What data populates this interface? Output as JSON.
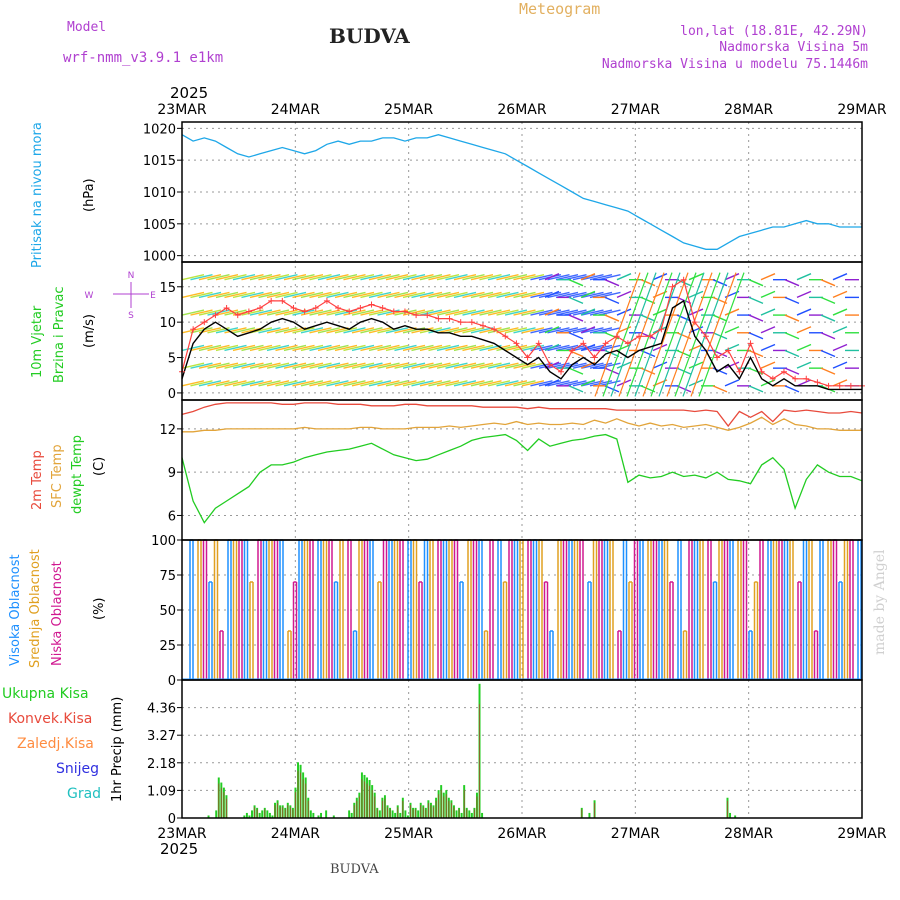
{
  "header": {
    "model_label": "Model",
    "model_name": "wrf-nmm_v3.9.1 e1km",
    "station": "BUDVA",
    "chart_kind": "Meteogram",
    "coords": "lon,lat (18.81E, 42.29N)",
    "elevation": "Nadmorska Visina 5m",
    "model_elevation": "Nadmorska Visina u modelu 75.1446m",
    "year_top": "2025",
    "year_bottom": "2025",
    "footer_station": "BUDVA",
    "credit": "made by Angel"
  },
  "colors": {
    "pressure": "#1ea7e8",
    "wind_speed": "#000000",
    "gust": "#ff4040",
    "temp2m": "#e84a3c",
    "sfc_temp": "#e2a43a",
    "dewpt": "#22cc22",
    "cloud_high": "#1e90ff",
    "cloud_mid": "#e0a020",
    "cloud_low": "#d01890",
    "precip_total": "#22cc22",
    "precip_conv": "#a0502a",
    "precip_froz": "#ff8c40",
    "snow": "#3030e0",
    "hail": "#20c0c0",
    "label_purple": "#b040d0"
  },
  "chart_data": {
    "x_tick_labels": [
      "23MAR",
      "24MAR",
      "25MAR",
      "26MAR",
      "27MAR",
      "28MAR",
      "29MAR"
    ],
    "grid": true,
    "panels": [
      {
        "id": "pressure",
        "type": "line",
        "ylabels": [
          "Pritisak na nivou mora",
          "(hPa)"
        ],
        "ylim": [
          999,
          1021
        ],
        "yticks": [
          "1000",
          "1005",
          "1010",
          "1015",
          "1020"
        ],
        "series": [
          {
            "key": "pressure",
            "values": [
              1019,
              1018,
              1018.5,
              1018,
              1017,
              1016,
              1015.5,
              1016,
              1016.5,
              1017,
              1016.5,
              1016,
              1016.5,
              1017.5,
              1018,
              1017.5,
              1018,
              1018,
              1018.5,
              1018.5,
              1018,
              1018.5,
              1018.5,
              1019,
              1018.5,
              1018,
              1017.5,
              1017,
              1016.5,
              1016,
              1015,
              1014,
              1013,
              1012,
              1011,
              1010,
              1009,
              1008.5,
              1008,
              1007.5,
              1007,
              1006,
              1005,
              1004,
              1003,
              1002,
              1001.5,
              1001,
              1001,
              1002,
              1003,
              1003.5,
              1004,
              1004.5,
              1004.5,
              1005,
              1005.5,
              1005,
              1005,
              1004.5,
              1004.5,
              1004.5
            ]
          }
        ]
      },
      {
        "id": "wind",
        "type": "line",
        "ylabels": [
          "10m Vjetar",
          "Brzina i Pravac",
          "(m/s)"
        ],
        "ylim": [
          -1,
          18.5
        ],
        "yticks": [
          "0",
          "5",
          "10",
          "15"
        ],
        "compass": [
          "N",
          "E",
          "S",
          "W"
        ],
        "series": [
          {
            "key": "wind_speed",
            "values": [
              2,
              7,
              9,
              10,
              9,
              8,
              8.5,
              9,
              10,
              10.5,
              10,
              9,
              9.5,
              10,
              9.5,
              9,
              10,
              10.5,
              10,
              9,
              9.5,
              9,
              9,
              8.5,
              8.5,
              8,
              8,
              7.5,
              7,
              6,
              5,
              4,
              5,
              3,
              2,
              4,
              5,
              4,
              5.5,
              6,
              5,
              6,
              6.5,
              7,
              12,
              13,
              8,
              6,
              3,
              4,
              2,
              5,
              2,
              1,
              2,
              1,
              1,
              1,
              0.5,
              0.5,
              0.5,
              0.5
            ]
          },
          {
            "key": "gust",
            "values": [
              3,
              9,
              10,
              11,
              12,
              11,
              11.5,
              12,
              13,
              13,
              12,
              11.5,
              12,
              13,
              12,
              11.5,
              12,
              12.5,
              12,
              11.5,
              11.5,
              11,
              11,
              10.5,
              10.5,
              10,
              10,
              9.5,
              9,
              8,
              7,
              5,
              7,
              4,
              3,
              6,
              7,
              5,
              7,
              8,
              7,
              8,
              8,
              9,
              15,
              16,
              10,
              8,
              5,
              6,
              3,
              7,
              3,
              2,
              3,
              2,
              2,
              1.5,
              1,
              1,
              1,
              1
            ]
          }
        ]
      },
      {
        "id": "temp",
        "type": "line",
        "ylabels": [
          "2m Temp",
          "SFC Temp",
          "dewpt Temp",
          "(C)"
        ],
        "ylim": [
          4.3,
          14
        ],
        "yticks": [
          "6",
          "9",
          "12"
        ],
        "series": [
          {
            "key": "temp2m",
            "values": [
              13,
              13.2,
              13.5,
              13.7,
              13.8,
              13.8,
              13.8,
              13.8,
              13.8,
              13.7,
              13.7,
              13.8,
              13.8,
              13.8,
              13.7,
              13.7,
              13.7,
              13.6,
              13.6,
              13.6,
              13.7,
              13.7,
              13.6,
              13.6,
              13.6,
              13.6,
              13.6,
              13.5,
              13.5,
              13.5,
              13.5,
              13.4,
              13.5,
              13.4,
              13.4,
              13.4,
              13.4,
              13.4,
              13.4,
              13.3,
              13.3,
              13.3,
              13.3,
              13.3,
              13.3,
              13.3,
              13.2,
              13.3,
              13.2,
              12.2,
              13.2,
              12.8,
              13.2,
              12.5,
              13.3,
              13.2,
              13.3,
              13.2,
              13.1,
              13.1,
              13.2,
              13.1
            ]
          },
          {
            "key": "sfc_temp",
            "values": [
              11.8,
              11.8,
              11.9,
              11.9,
              12,
              12,
              12,
              12,
              12,
              12,
              12,
              12.1,
              12,
              12,
              12,
              12,
              12.1,
              12.1,
              12,
              12,
              12,
              12.1,
              12.1,
              12.1,
              12.2,
              12.1,
              12.2,
              12.3,
              12.4,
              12.3,
              12.5,
              12.3,
              12.4,
              12.3,
              12.3,
              12.4,
              12.3,
              12.6,
              12.4,
              12.7,
              12.4,
              12.2,
              12.4,
              12.2,
              12.3,
              12.1,
              12.2,
              12.3,
              12.1,
              11.9,
              12.1,
              12.4,
              12.8,
              12.3,
              12.7,
              12.3,
              12.2,
              12,
              12,
              11.9,
              11.9,
              11.9
            ]
          },
          {
            "key": "dewpt",
            "values": [
              10,
              7,
              5.5,
              6.5,
              7,
              7.5,
              8,
              9,
              9.5,
              9.5,
              9.7,
              10,
              10.2,
              10.4,
              10.5,
              10.6,
              10.8,
              11,
              10.6,
              10.2,
              10,
              9.8,
              9.9,
              10.2,
              10.5,
              10.8,
              11.2,
              11.4,
              11.5,
              11.6,
              11.2,
              10.5,
              11.3,
              10.8,
              11,
              11.2,
              11.3,
              11.5,
              11.6,
              11.3,
              8.3,
              8.8,
              8.6,
              8.7,
              9,
              8.7,
              8.8,
              8.6,
              9,
              8.5,
              8.4,
              8.2,
              9.5,
              10,
              9.2,
              6.5,
              8.5,
              9.5,
              9,
              8.7,
              8.7,
              8.4
            ]
          }
        ]
      },
      {
        "id": "cloud",
        "type": "bar",
        "ylabels": [
          "Visoka Oblacnost",
          "Srednja Oblacnost",
          "Niska Oblacnost",
          "(%)"
        ],
        "ylim": [
          0,
          100
        ],
        "yticks": [
          "0",
          "25",
          "50",
          "75",
          "100"
        ]
      },
      {
        "id": "precip",
        "type": "bar",
        "ylabels": [
          "1hr Precip (mm)"
        ],
        "ylim": [
          0,
          5.45
        ],
        "yticks": [
          "0",
          "1.09",
          "2.18",
          "3.27",
          "4.36"
        ],
        "legend": [
          "Ukupna Kisa",
          "Konvek.Kisa",
          "Zaledj.Kisa",
          "Snijeg",
          "Grad"
        ],
        "series": [
          {
            "key": "precip_total",
            "name": "Ukupna Kisa",
            "values": [
              0,
              0,
              0,
              0,
              0,
              0,
              0,
              0,
              0,
              0,
              0.1,
              0,
              0,
              0.3,
              1.6,
              1.4,
              1.2,
              0.9,
              0,
              0,
              0,
              0,
              0,
              0,
              0.1,
              0.2,
              0.1,
              0.3,
              0.5,
              0.4,
              0.2,
              0.3,
              0.4,
              0.3,
              0.2,
              0.1,
              0.6,
              0.7,
              0.5,
              0.5,
              0.4,
              0.6,
              0.5,
              0.4,
              1.2,
              2.2,
              2.1,
              1.8,
              1.6,
              0.8,
              0.3,
              0.2,
              0,
              0.1,
              0.2,
              0,
              0.3,
              0,
              0,
              0.1,
              0,
              0,
              0,
              0,
              0,
              0.3,
              0.2,
              0.6,
              0.8,
              1.0,
              1.8,
              1.7,
              1.6,
              1.5,
              1.3,
              1.0,
              0.4,
              0.3,
              0.8,
              0.9,
              0.5,
              0.4,
              0.3,
              0.2,
              0.5,
              0.2,
              0.8,
              0.3,
              0.1,
              0.6,
              0.4,
              0.4,
              0.3,
              0.6,
              0.5,
              0.4,
              0.7,
              0.6,
              0.5,
              0.8,
              1.1,
              1.3,
              1.0,
              1.1,
              0.8,
              0.7,
              0.5,
              0.3,
              0.4,
              0.2,
              1.3,
              0.4,
              0.3,
              0.2,
              0.4,
              1.0,
              5.3,
              0.2,
              0,
              0,
              0,
              0,
              0,
              0,
              0,
              0,
              0,
              0,
              0,
              0,
              0,
              0,
              0,
              0,
              0,
              0,
              0,
              0,
              0,
              0,
              0,
              0,
              0,
              0,
              0,
              0,
              0,
              0,
              0,
              0,
              0,
              0,
              0,
              0,
              0,
              0,
              0.4,
              0,
              0,
              0.2,
              0,
              0.7,
              0,
              0,
              0,
              0,
              0,
              0,
              0,
              0,
              0,
              0,
              0,
              0,
              0,
              0,
              0,
              0,
              0,
              0,
              0,
              0,
              0,
              0,
              0,
              0,
              0,
              0,
              0,
              0,
              0,
              0,
              0,
              0,
              0,
              0,
              0,
              0,
              0,
              0,
              0,
              0,
              0,
              0,
              0,
              0,
              0,
              0,
              0,
              0,
              0,
              0,
              0,
              0.8,
              0.2,
              0,
              0.1,
              0,
              0,
              0,
              0,
              0,
              0,
              0,
              0,
              0,
              0,
              0,
              0,
              0,
              0,
              0,
              0,
              0,
              0,
              0,
              0,
              0,
              0,
              0,
              0,
              0,
              0,
              0,
              0,
              0,
              0,
              0,
              0,
              0,
              0,
              0,
              0,
              0,
              0,
              0,
              0,
              0,
              0,
              0,
              0,
              0,
              0,
              0,
              0,
              0
            ]
          }
        ]
      }
    ]
  }
}
